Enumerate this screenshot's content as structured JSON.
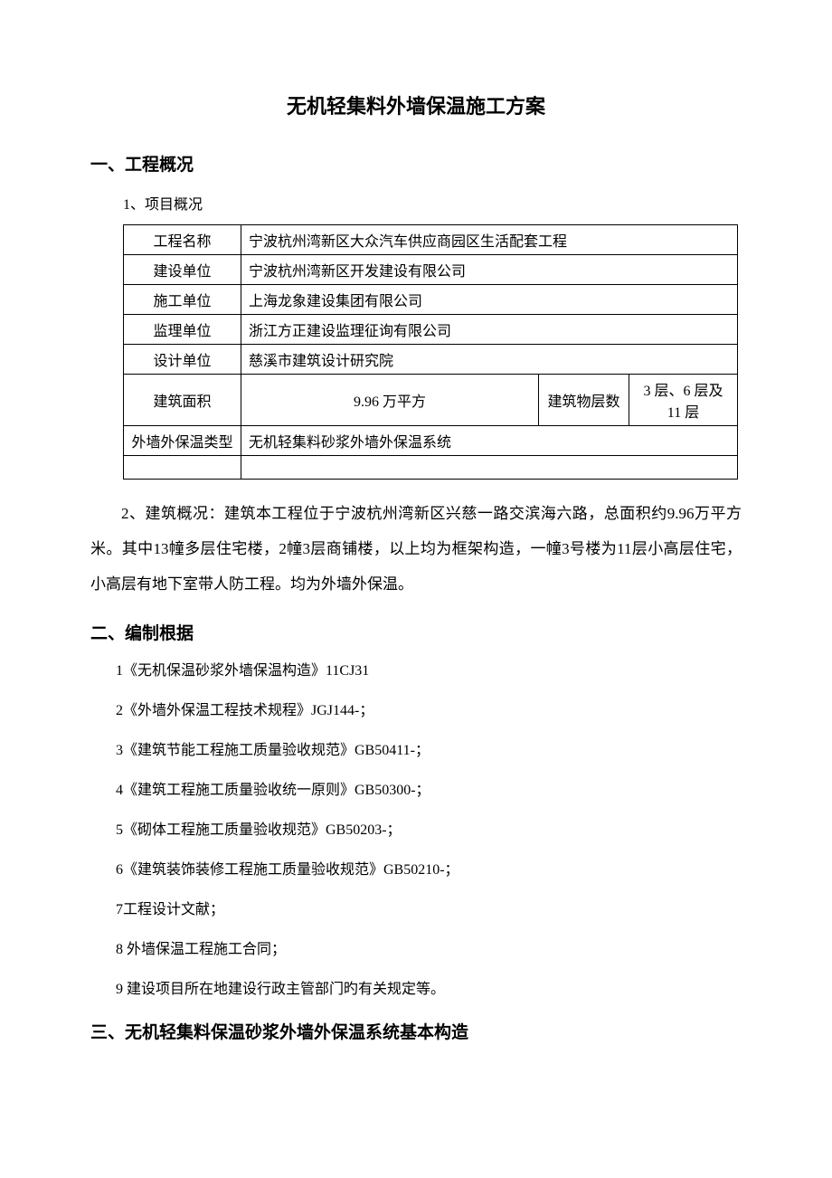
{
  "title": "无机轻集料外墙保温施工方案",
  "section1": {
    "heading": "一、工程概况",
    "sub1": "1、项目概况",
    "table": {
      "rows": [
        {
          "label": "工程名称",
          "value": "宁波杭州湾新区大众汽车供应商园区生活配套工程"
        },
        {
          "label": "建设单位",
          "value": "宁波杭州湾新区开发建设有限公司"
        },
        {
          "label": "施工单位",
          "value": "上海龙象建设集团有限公司"
        },
        {
          "label": "监理单位",
          "value": "浙江方正建设监理征询有限公司"
        },
        {
          "label": "设计单位",
          "value": "慈溪市建筑设计研究院"
        }
      ],
      "area_row": {
        "label": "建筑面积",
        "value": "9.96 万平方",
        "label2": "建筑物层数",
        "value2": "3 层、6 层及 11 层"
      },
      "type_row": {
        "label": "外墙外保温类型",
        "value": "无机轻集料砂浆外墙外保温系统"
      }
    },
    "body": "2、建筑概况：建筑本工程位于宁波杭州湾新区兴慈一路交滨海六路，总面积约9.96万平方米。其中13幢多层住宅楼，2幢3层商铺楼，以上均为框架构造，一幢3号楼为11层小高层住宅，小高层有地下室带人防工程。均为外墙外保温。"
  },
  "section2": {
    "heading": "二、编制根据",
    "items": [
      "1《无机保温砂浆外墙保温构造》11CJ31",
      "2《外墙外保温工程技术规程》JGJ144-；",
      "3《建筑节能工程施工质量验收规范》GB50411-；",
      "4《建筑工程施工质量验收统一原则》GB50300-；",
      "5《砌体工程施工质量验收规范》GB50203-；",
      "6《建筑装饰装修工程施工质量验收规范》GB50210-；",
      "7工程设计文献；",
      "8 外墙保温工程施工合同；",
      "9 建设项目所在地建设行政主管部门旳有关规定等。"
    ]
  },
  "section3": {
    "heading": "三、无机轻集料保温砂浆外墙外保温系统基本构造"
  },
  "colors": {
    "background": "#ffffff",
    "text": "#000000",
    "border": "#000000"
  }
}
